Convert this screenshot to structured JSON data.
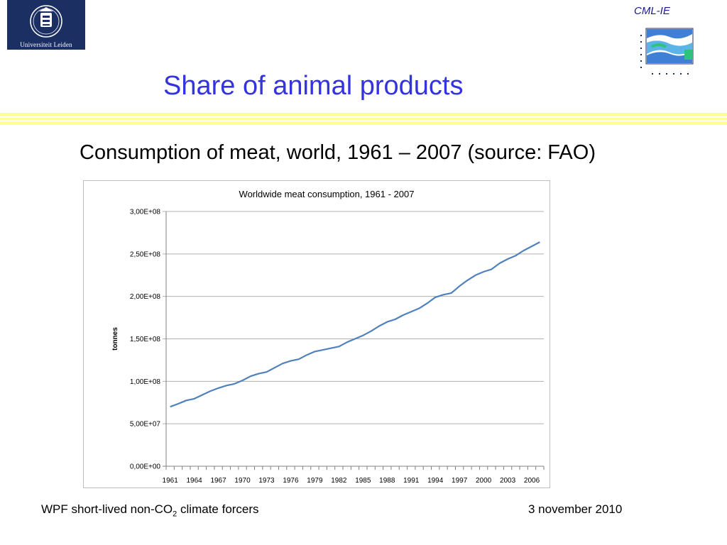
{
  "header": {
    "logo_text": "Universiteit Leiden",
    "cml_label": "CML-IE",
    "title": "Share of animal products",
    "subtitle": "Consumption of meat, world, 1961 – 2007 (source: FAO)"
  },
  "footer": {
    "left_prefix": "WPF short-lived non-CO",
    "left_sub": "2",
    "left_suffix": " climate forcers",
    "right": "3 november 2010"
  },
  "colors": {
    "title": "#3333e0",
    "line": "#4f81bd",
    "grid": "#b0b0b0",
    "logo_bg": "#1b2f63",
    "rule": "#ffff99"
  },
  "chart_data": {
    "type": "line",
    "title": "Worldwide meat consumption, 1961 - 2007",
    "xlabel": "",
    "ylabel": "tonnes",
    "ylim": [
      0,
      300000000
    ],
    "yticks": [
      0,
      50000000,
      100000000,
      150000000,
      200000000,
      250000000,
      300000000
    ],
    "ytick_labels": [
      "0,00E+00",
      "5,00E+07",
      "1,00E+08",
      "1,50E+08",
      "2,00E+08",
      "2,50E+08",
      "3,00E+08"
    ],
    "xtick_labels": [
      "1961",
      "1964",
      "1967",
      "1970",
      "1973",
      "1976",
      "1979",
      "1982",
      "1985",
      "1988",
      "1991",
      "1994",
      "1997",
      "2000",
      "2003",
      "2006"
    ],
    "grid": true,
    "x": [
      1961,
      1962,
      1963,
      1964,
      1965,
      1966,
      1967,
      1968,
      1969,
      1970,
      1971,
      1972,
      1973,
      1974,
      1975,
      1976,
      1977,
      1978,
      1979,
      1980,
      1981,
      1982,
      1983,
      1984,
      1985,
      1986,
      1987,
      1988,
      1989,
      1990,
      1991,
      1992,
      1993,
      1994,
      1995,
      1996,
      1997,
      1998,
      1999,
      2000,
      2001,
      2002,
      2003,
      2004,
      2005,
      2006,
      2007
    ],
    "values": [
      70000000,
      73500000,
      77500000,
      79500000,
      84000000,
      88500000,
      92000000,
      95000000,
      97000000,
      101000000,
      106000000,
      109000000,
      111000000,
      116000000,
      121000000,
      124000000,
      126000000,
      131000000,
      135000000,
      137000000,
      139000000,
      141000000,
      146000000,
      150000000,
      154000000,
      159000000,
      165000000,
      170000000,
      173000000,
      178000000,
      182000000,
      186000000,
      192000000,
      199000000,
      202000000,
      204000000,
      212000000,
      219000000,
      225000000,
      229000000,
      232000000,
      239000000,
      244000000,
      248000000,
      254000000,
      259000000,
      264000000
    ]
  }
}
